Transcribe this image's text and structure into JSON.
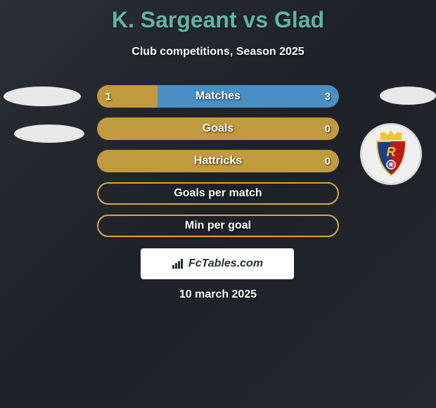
{
  "title": "K. Sargeant vs Glad",
  "subtitle": "Club competitions, Season 2025",
  "date": "10 march 2025",
  "fctables_label": "FcTables.com",
  "colors": {
    "title_color": "#5fb5a8",
    "text_color": "#ffffff",
    "bg_gradient_start": "#2a2e35",
    "bg_gradient_end": "#242830",
    "left_player_color": "#c19a3f",
    "right_player_color": "#4a8fc4",
    "border_orange": "#d4a847",
    "oval_color": "#e8e8e8",
    "logo_crown": "#f4c430",
    "logo_blue": "#1e3a8a",
    "logo_red": "#b91c1c"
  },
  "stats": [
    {
      "label": "Matches",
      "left_value": "1",
      "right_value": "3",
      "left_pct": 25,
      "right_pct": 75,
      "has_values": true
    },
    {
      "label": "Goals",
      "left_value": "",
      "right_value": "0",
      "left_pct": 100,
      "right_pct": 0,
      "has_values": true,
      "full_left": true
    },
    {
      "label": "Hattricks",
      "left_value": "",
      "right_value": "0",
      "left_pct": 100,
      "right_pct": 0,
      "has_values": true,
      "full_left": true
    },
    {
      "label": "Goals per match",
      "left_value": "",
      "right_value": "",
      "left_pct": 0,
      "right_pct": 0,
      "has_values": false,
      "border_only": true
    },
    {
      "label": "Min per goal",
      "left_value": "",
      "right_value": "",
      "left_pct": 0,
      "right_pct": 0,
      "has_values": false,
      "border_only": true
    }
  ]
}
